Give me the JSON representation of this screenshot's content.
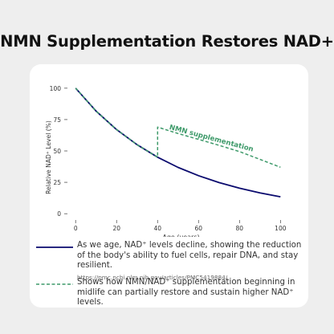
{
  "title": "NMN Supplementation Restores NAD+",
  "chart_data": {
    "type": "line",
    "xlabel": "Age (years)",
    "ylabel": "Relative NAD⁺ Level (%)",
    "xlim": [
      -4,
      103
    ],
    "ylim": [
      -5,
      105
    ],
    "xticks": [
      0,
      20,
      40,
      60,
      80,
      100
    ],
    "yticks": [
      0,
      25,
      50,
      75,
      100
    ],
    "grid": false,
    "series": [
      {
        "color": "#0a0a6e",
        "style": "solid",
        "x": [
          0,
          10,
          20,
          30,
          40,
          50,
          60,
          70,
          80,
          90,
          100
        ],
        "y": [
          100,
          81.7,
          67.0,
          55.0,
          45.0,
          36.9,
          30.3,
          24.8,
          20.3,
          16.6,
          13.5
        ]
      },
      {
        "name": "NMN supplementation",
        "color": "#3e9a6a",
        "style": "dashed",
        "x": [
          0,
          10,
          20,
          30,
          40,
          40,
          50,
          60,
          70,
          80,
          90,
          100
        ],
        "y": [
          100,
          81.7,
          67.0,
          55.0,
          45.0,
          69.0,
          63.9,
          59.2,
          54.5,
          49.5,
          43.3,
          37.0
        ]
      }
    ],
    "annotation": "NMN supplementation"
  },
  "legend": [
    {
      "text": "As we age, NAD⁺ levels decline, showing the reduction of the body's ability to fuel cells, repair DNA, and stay resilient.",
      "source": "https://pmc.ncbi.nlm.nih.gov/articles/PMC5419884/",
      "color": "#0a0a6e",
      "style": "solid"
    },
    {
      "text": "Shows how NMN/NAD⁺ supplementation beginning in midlife can partially restore and sustain higher NAD⁺ levels.",
      "source": "",
      "color": "#3e9a6a",
      "style": "dashed"
    }
  ]
}
